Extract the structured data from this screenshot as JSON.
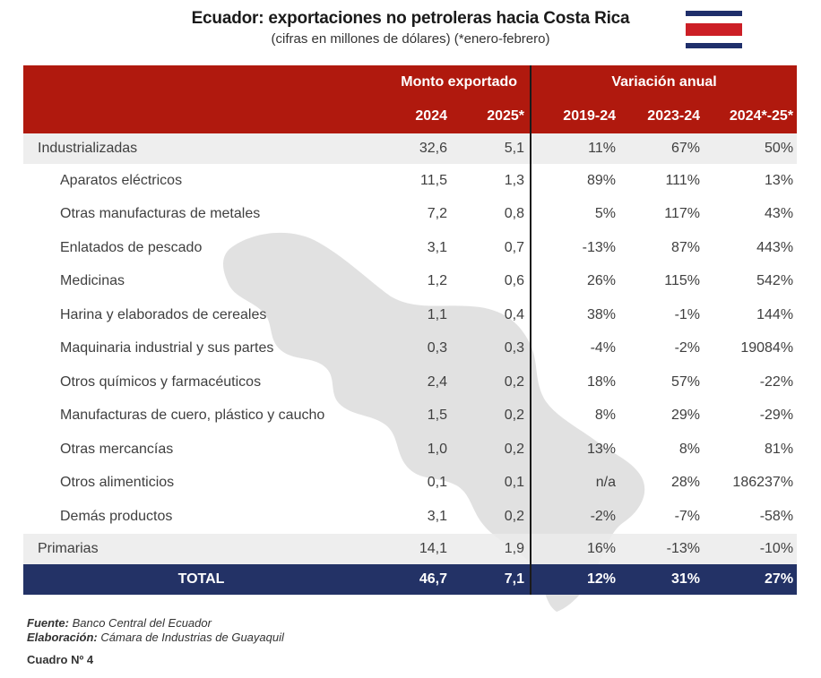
{
  "title": "Ecuador: exportaciones no petroleras hacia Costa Rica",
  "subtitle": "(cifras en millones de dólares) (*enero-febrero)",
  "header": {
    "group1": "Monto exportado",
    "group2": "Variación anual",
    "cols": [
      "2024",
      "2025*",
      "2019-24",
      "2023-24",
      "2024*-25*"
    ]
  },
  "rows": [
    {
      "label": "Industrializadas",
      "v": [
        "32,6",
        "5,1",
        "11%",
        "67%",
        "50%"
      ]
    },
    {
      "label": "Aparatos eléctricos",
      "v": [
        "11,5",
        "1,3",
        "89%",
        "111%",
        "13%"
      ]
    },
    {
      "label": "Otras manufacturas de metales",
      "v": [
        "7,2",
        "0,8",
        "5%",
        "117%",
        "43%"
      ]
    },
    {
      "label": "Enlatados de pescado",
      "v": [
        "3,1",
        "0,7",
        "-13%",
        "87%",
        "443%"
      ]
    },
    {
      "label": "Medicinas",
      "v": [
        "1,2",
        "0,6",
        "26%",
        "115%",
        "542%"
      ]
    },
    {
      "label": "Harina y elaborados de cereales",
      "v": [
        "1,1",
        "0,4",
        "38%",
        "-1%",
        "144%"
      ]
    },
    {
      "label": "Maquinaria industrial y sus partes",
      "v": [
        "0,3",
        "0,3",
        "-4%",
        "-2%",
        "19084%"
      ]
    },
    {
      "label": "Otros químicos y farmacéuticos",
      "v": [
        "2,4",
        "0,2",
        "18%",
        "57%",
        "-22%"
      ]
    },
    {
      "label": "Manufacturas de cuero, plástico y caucho",
      "v": [
        "1,5",
        "0,2",
        "8%",
        "29%",
        "-29%"
      ]
    },
    {
      "label": "Otras mercancías",
      "v": [
        "1,0",
        "0,2",
        "13%",
        "8%",
        "81%"
      ]
    },
    {
      "label": "Otros alimenticios",
      "v": [
        "0,1",
        "0,1",
        "n/a",
        "28%",
        "186237%"
      ]
    },
    {
      "label": "Demás productos",
      "v": [
        "3,1",
        "0,2",
        "-2%",
        "-7%",
        "-58%"
      ]
    },
    {
      "label": "Primarias",
      "v": [
        "14,1",
        "1,9",
        "16%",
        "-13%",
        "-10%"
      ]
    }
  ],
  "total": {
    "label": "TOTAL",
    "v": [
      "46,7",
      "7,1",
      "12%",
      "31%",
      "27%"
    ]
  },
  "footer": {
    "fuente_label": "Fuente:",
    "fuente": "Banco Central del Ecuador",
    "elab_label": "Elaboración:",
    "elab": "Cámara de Industrias de Guayaquil",
    "cuadro": "Cuadro Nº 4"
  },
  "colors": {
    "header": "#b0190e",
    "total": "#233266",
    "flag_blue": "#1f2f6b",
    "flag_red": "#cc1f26"
  },
  "icons": {
    "flag": "costa-rica-flag-icon",
    "map": "costa-rica-map-silhouette"
  }
}
